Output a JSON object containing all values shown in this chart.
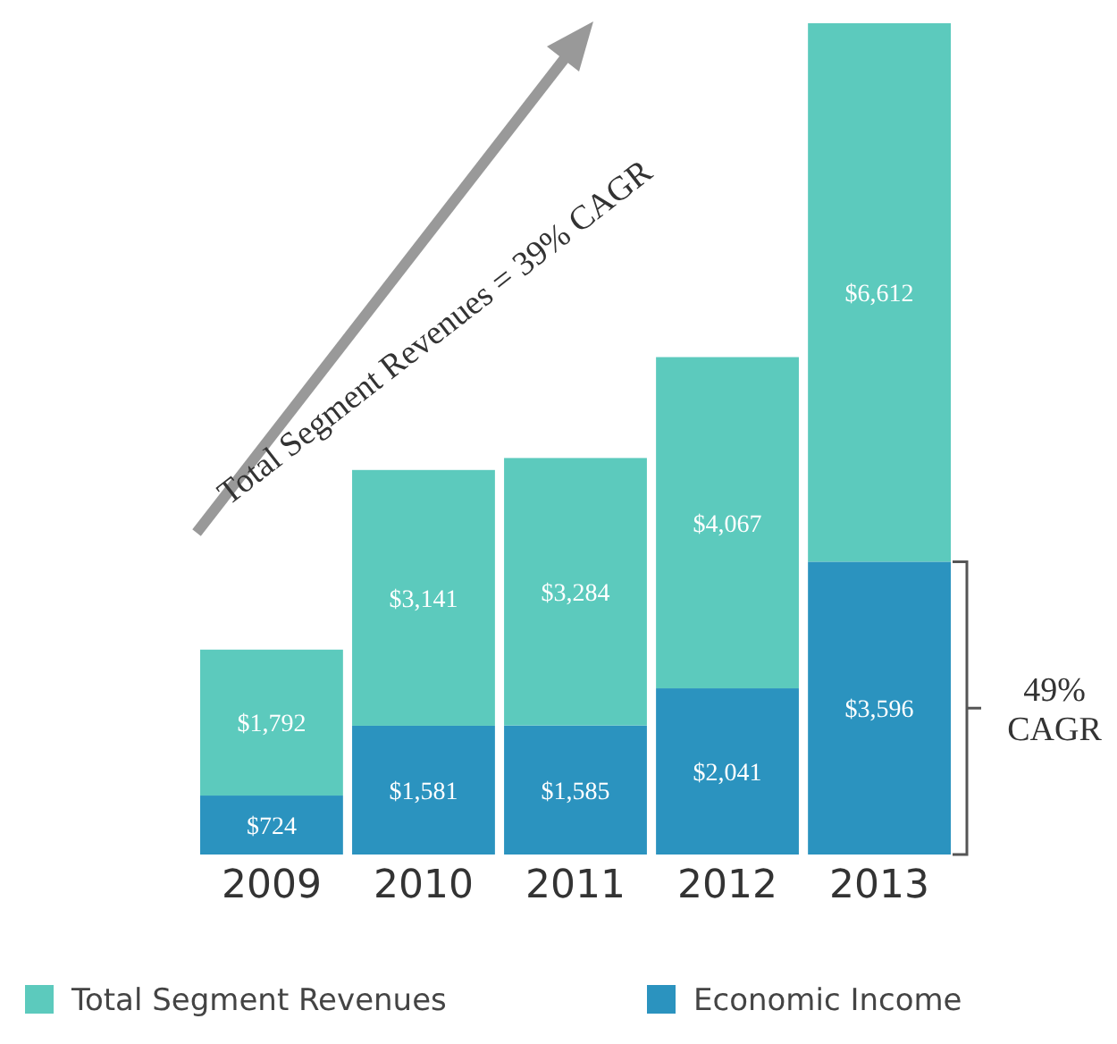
{
  "chart_data": {
    "type": "bar",
    "stacked": true,
    "legend": "bottom",
    "categories": [
      "2009",
      "2010",
      "2011",
      "2012",
      "2013"
    ],
    "series": [
      {
        "name": "Economic Income",
        "color": "#2b93bf",
        "values": [
          724,
          1581,
          1585,
          2041,
          3596
        ],
        "value_labels": [
          "$724",
          "$1,581",
          "$1,585",
          "$2,041",
          "$3,596"
        ]
      },
      {
        "name": "Total Segment Revenues",
        "color": "#5ccabd",
        "values": [
          1792,
          3141,
          3284,
          4067,
          6612
        ],
        "value_labels": [
          "$1,792",
          "$3,141",
          "$3,284",
          "$4,067",
          "$6,612"
        ]
      }
    ],
    "annotations": [
      "Total Segment Revenues = 39% CAGR",
      "49% CAGR"
    ]
  }
}
